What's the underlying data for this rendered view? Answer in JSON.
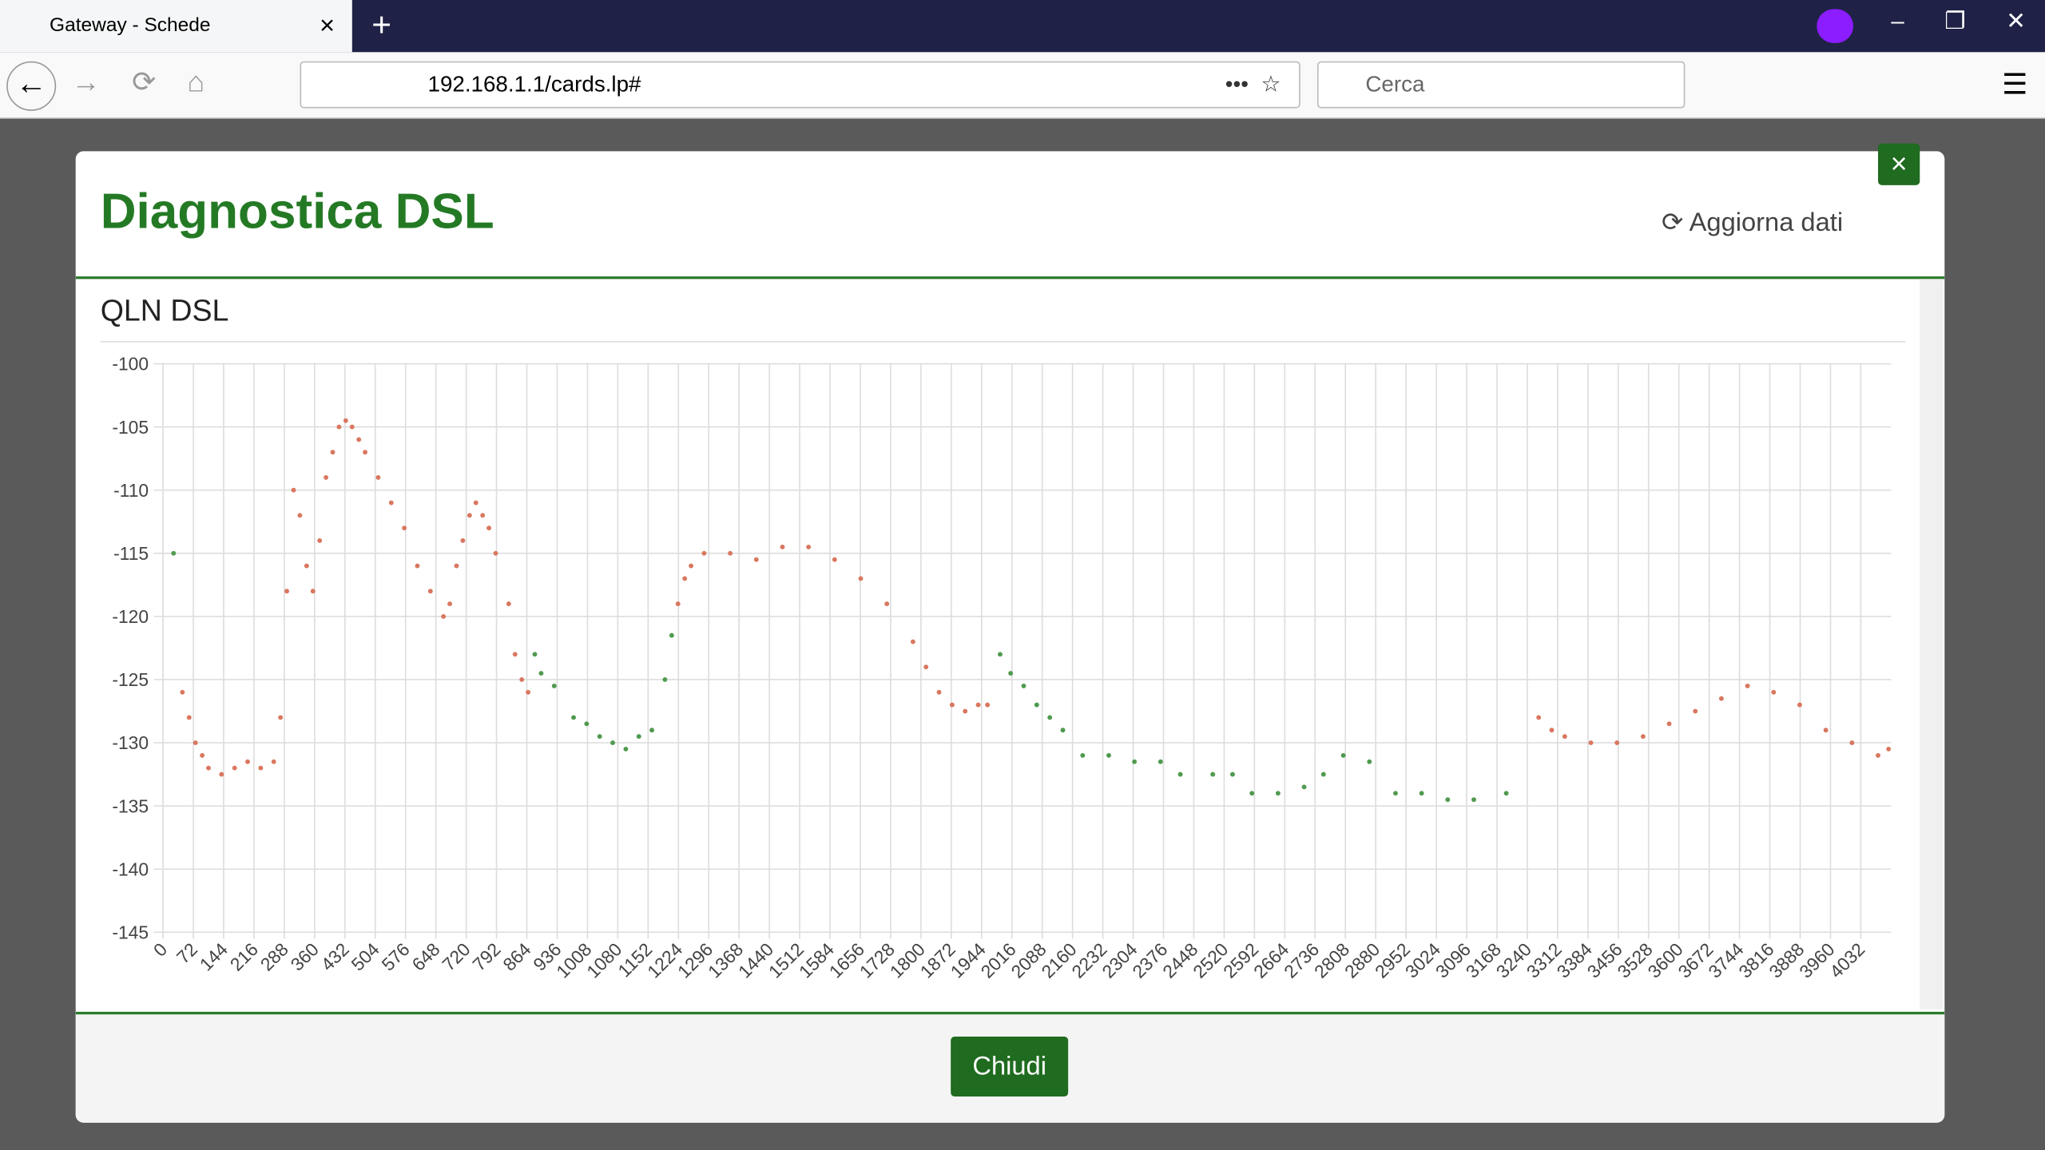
{
  "browser": {
    "tab_title": "Gateway - Schede",
    "url": "192.168.1.1/cards.lp#",
    "search_placeholder": "Cerca"
  },
  "modal": {
    "title": "Diagnostica DSL",
    "refresh_label": "Aggiorna dati",
    "close_button": "Chiudi"
  },
  "chart_data": {
    "type": "scatter",
    "title": "QLN DSL",
    "xlim": [
      0,
      4104
    ],
    "ylim": [
      -145,
      -100
    ],
    "xticks": [
      0,
      72,
      144,
      216,
      288,
      360,
      432,
      504,
      576,
      648,
      720,
      792,
      864,
      936,
      1008,
      1080,
      1152,
      1224,
      1296,
      1368,
      1440,
      1512,
      1584,
      1656,
      1728,
      1800,
      1872,
      1944,
      2016,
      2088,
      2160,
      2232,
      2304,
      2376,
      2448,
      2520,
      2592,
      2664,
      2736,
      2808,
      2880,
      2952,
      3024,
      3096,
      3168,
      3240,
      3312,
      3384,
      3456,
      3528,
      3600,
      3672,
      3744,
      3816,
      3888,
      3960,
      4032
    ],
    "yticks": [
      -100,
      -105,
      -110,
      -115,
      -120,
      -125,
      -130,
      -135,
      -140,
      -145
    ],
    "grid": true,
    "series": [
      {
        "color": "#d9775f",
        "x": [
          46,
          62,
          77,
          93,
          108,
          139,
          170,
          201,
          232,
          263,
          279,
          294,
          310,
          325,
          341,
          356,
          372,
          387,
          403,
          418,
          434,
          449,
          465,
          480,
          511,
          542,
          573,
          604,
          635,
          666,
          681,
          697,
          712,
          728,
          743,
          759,
          774,
          790,
          821,
          836,
          852,
          867,
          1223,
          1239,
          1254,
          1285,
          1347,
          1409,
          1471,
          1533,
          1595,
          1657,
          1719,
          1781,
          1812,
          1843,
          1874,
          1905,
          1936,
          1958,
          3267,
          3298,
          3329,
          3391,
          3453,
          3515,
          3577,
          3639,
          3701,
          3763,
          3825,
          3887,
          3949,
          4011,
          4073,
          4098
        ],
        "values": [
          -126,
          -128,
          -130,
          -131,
          -132,
          -132.5,
          -132,
          -131.5,
          -132,
          -131.5,
          -128,
          -118,
          -110,
          -112,
          -116,
          -118,
          -114,
          -109,
          -107,
          -105,
          -104.5,
          -105,
          -106,
          -107,
          -109,
          -111,
          -113,
          -116,
          -118,
          -120,
          -119,
          -116,
          -114,
          -112,
          -111,
          -112,
          -113,
          -115,
          -119,
          -123,
          -125,
          -126,
          -119,
          -117,
          -116,
          -115,
          -115,
          -115.5,
          -114.5,
          -114.5,
          -115.5,
          -117,
          -119,
          -122,
          -124,
          -126,
          -127,
          -127.5,
          -127,
          -127,
          -128,
          -129,
          -129.5,
          -130,
          -130,
          -129.5,
          -128.5,
          -127.5,
          -126.5,
          -125.5,
          -126,
          -127,
          -129,
          -130,
          -131,
          -130.5
        ]
      },
      {
        "color": "#4f9a4f",
        "x": [
          25,
          883,
          898,
          929,
          975,
          1006,
          1037,
          1068,
          1099,
          1130,
          1161,
          1192,
          1208,
          1988,
          2013,
          2044,
          2075,
          2106,
          2137,
          2184,
          2246,
          2307,
          2369,
          2416,
          2493,
          2540,
          2586,
          2648,
          2710,
          2756,
          2803,
          2865,
          2927,
          2989,
          3051,
          3113,
          3190
        ],
        "values": [
          -115,
          -123,
          -124.5,
          -125.5,
          -128,
          -128.5,
          -129.5,
          -130,
          -130.5,
          -129.5,
          -129,
          -125,
          -121.5,
          -123,
          -124.5,
          -125.5,
          -127,
          -128,
          -129,
          -131,
          -131,
          -131.5,
          -131.5,
          -132.5,
          -132.5,
          -132.5,
          -134,
          -134,
          -133.5,
          -132.5,
          -131,
          -131.5,
          -134,
          -134,
          -134.5,
          -134.5,
          -134
        ]
      }
    ]
  }
}
